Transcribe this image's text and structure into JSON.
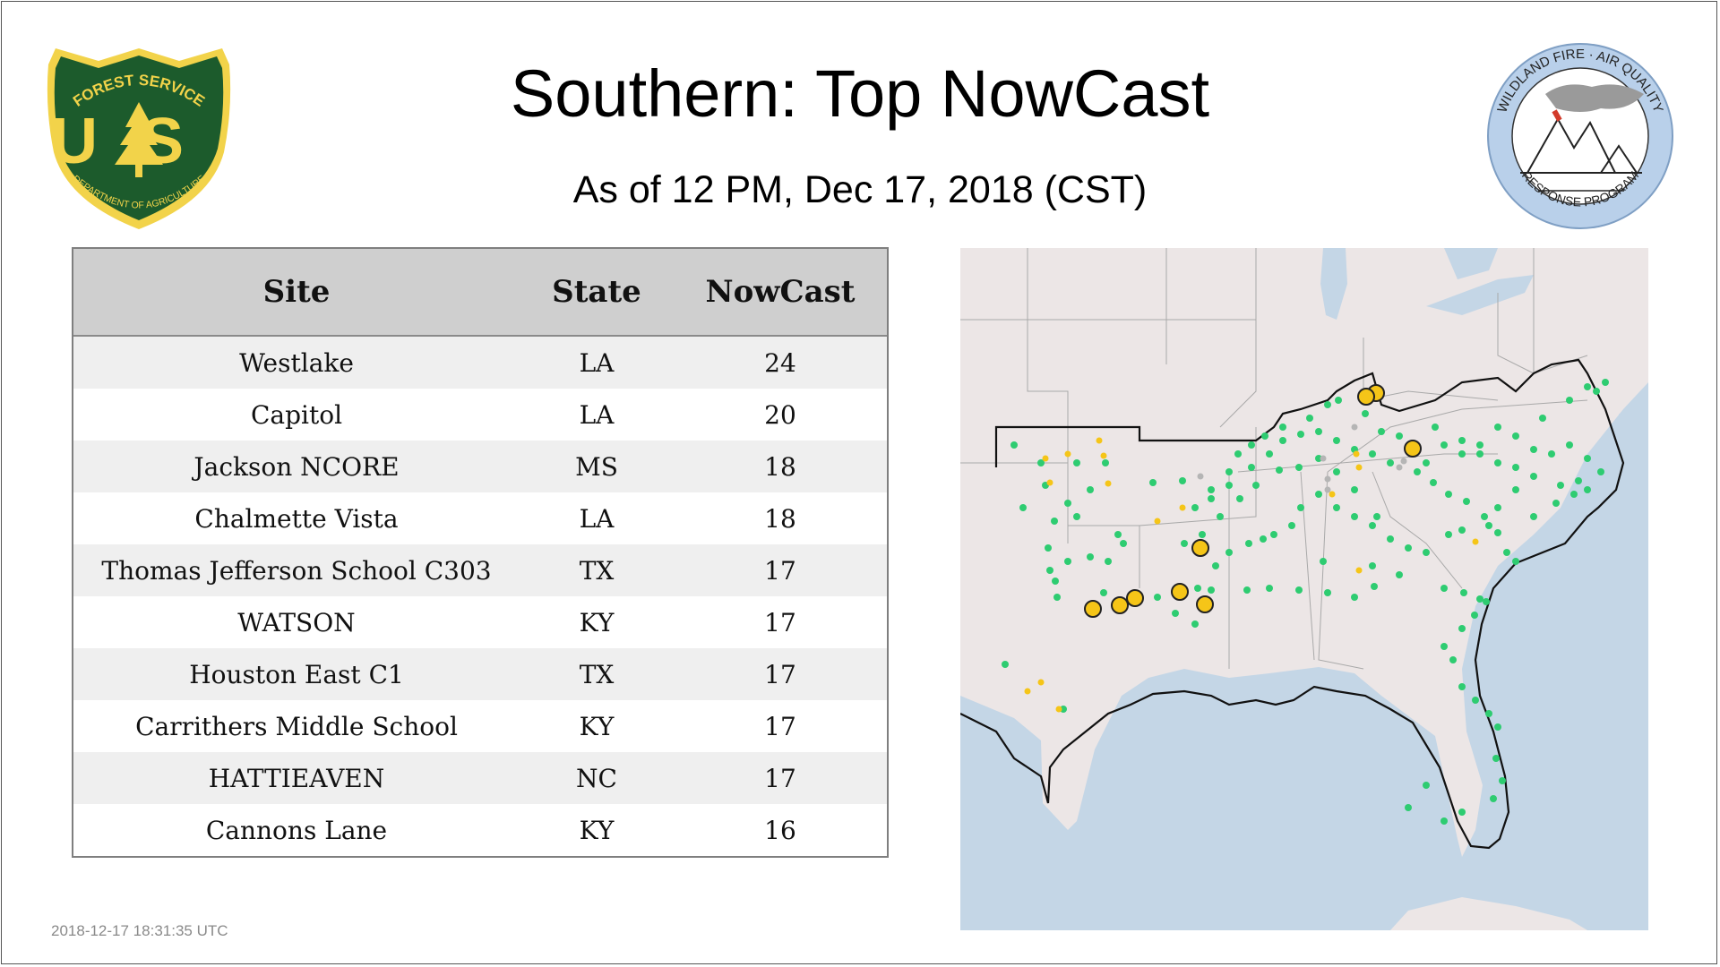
{
  "header": {
    "title": "Southern: Top NowCast",
    "subtitle": "As of 12 PM, Dec 17, 2018 (CST)"
  },
  "logos": {
    "forest_service": {
      "top_text": "FOREST SERVICE",
      "letters": "US",
      "bottom_text": "DEPARTMENT OF AGRICULTURE"
    },
    "wildland": {
      "top_text": "WILDLAND FIRE · AIR QUALITY",
      "bottom_text": "RESPONSE PROGRAM"
    }
  },
  "table": {
    "headers": [
      "Site",
      "State",
      "NowCast"
    ],
    "rows": [
      [
        "Westlake",
        "LA",
        "24"
      ],
      [
        "Capitol",
        "LA",
        "20"
      ],
      [
        "Jackson NCORE",
        "MS",
        "18"
      ],
      [
        "Chalmette Vista",
        "LA",
        "18"
      ],
      [
        "Thomas Jefferson School C303",
        "TX",
        "17"
      ],
      [
        "WATSON",
        "KY",
        "17"
      ],
      [
        "Houston East C1",
        "TX",
        "17"
      ],
      [
        "Carrithers Middle School",
        "KY",
        "17"
      ],
      [
        "HATTIEAVEN",
        "NC",
        "17"
      ],
      [
        "Cannons Lane",
        "KY",
        "16"
      ]
    ]
  },
  "map": {
    "colors": {
      "land": "#ece6e6",
      "water": "#c4d6e6",
      "border": "#a9a9a9",
      "region": "#111111",
      "good": "#2ecc71",
      "moderate": "#f5c518",
      "nodata": "#b5b5b5"
    }
  },
  "footer": {
    "timestamp": "2018-12-17 18:31:35 UTC"
  }
}
